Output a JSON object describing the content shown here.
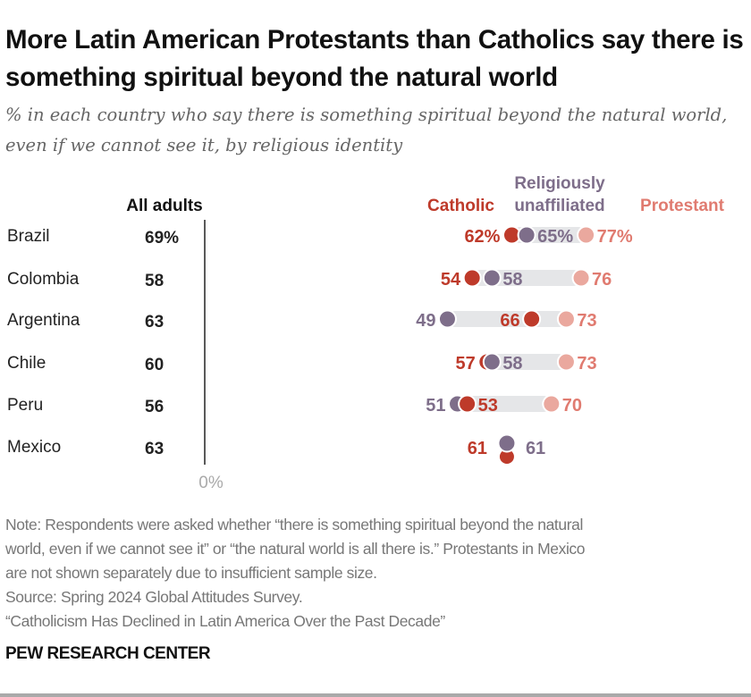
{
  "title": "More Latin American Protestants than Catholics say there is something spiritual beyond the natural world",
  "subtitle": "% in each country who say there is something spiritual beyond the natural world, even if we cannot see it, by religious identity",
  "colors": {
    "catholic": "#BE3A2A",
    "unaffiliated": "#7E6E8A",
    "protestant_dot": "#EAA89E",
    "protestant_label": "#E07B70",
    "bar": "#E5E6E8",
    "axis": "#222222"
  },
  "chart_data": {
    "type": "dot",
    "all_adults_header": "All adults",
    "axis_label": "0%",
    "xlim": [
      0,
      100
    ],
    "legend": {
      "catholic": "Catholic",
      "unaffiliated_line1": "Religiously",
      "unaffiliated_line2": "unaffiliated",
      "protestant": "Protestant"
    },
    "categories": [
      "Brazil",
      "Colombia",
      "Argentina",
      "Chile",
      "Peru",
      "Mexico"
    ],
    "all_adults": [
      "69%",
      "58",
      "63",
      "60",
      "56",
      "63"
    ],
    "series": [
      {
        "name": "Catholic",
        "key": "catholic",
        "values": [
          62,
          54,
          66,
          57,
          53,
          61
        ],
        "labels": [
          "62%",
          "54",
          "66",
          "57",
          "53",
          "61"
        ]
      },
      {
        "name": "Religiously unaffiliated",
        "key": "unaffiliated",
        "values": [
          65,
          58,
          49,
          58,
          51,
          61
        ],
        "labels": [
          "65%",
          "58",
          "49",
          "58",
          "51",
          "61"
        ]
      },
      {
        "name": "Protestant",
        "key": "protestant",
        "values": [
          77,
          76,
          73,
          73,
          70,
          null
        ],
        "labels": [
          "77%",
          "76",
          "73",
          "73",
          "70",
          null
        ]
      }
    ]
  },
  "notes": [
    "Note: Respondents were asked whether “there is something spiritual beyond the natural",
    "world, even if we cannot see it” or “the natural world is all there is.” Protestants in Mexico",
    "are not shown separately due to insufficient sample size.",
    "Source: Spring 2024 Global Attitudes Survey.",
    "“Catholicism Has Declined in Latin America Over the Past Decade”"
  ],
  "brand": "PEW RESEARCH CENTER"
}
